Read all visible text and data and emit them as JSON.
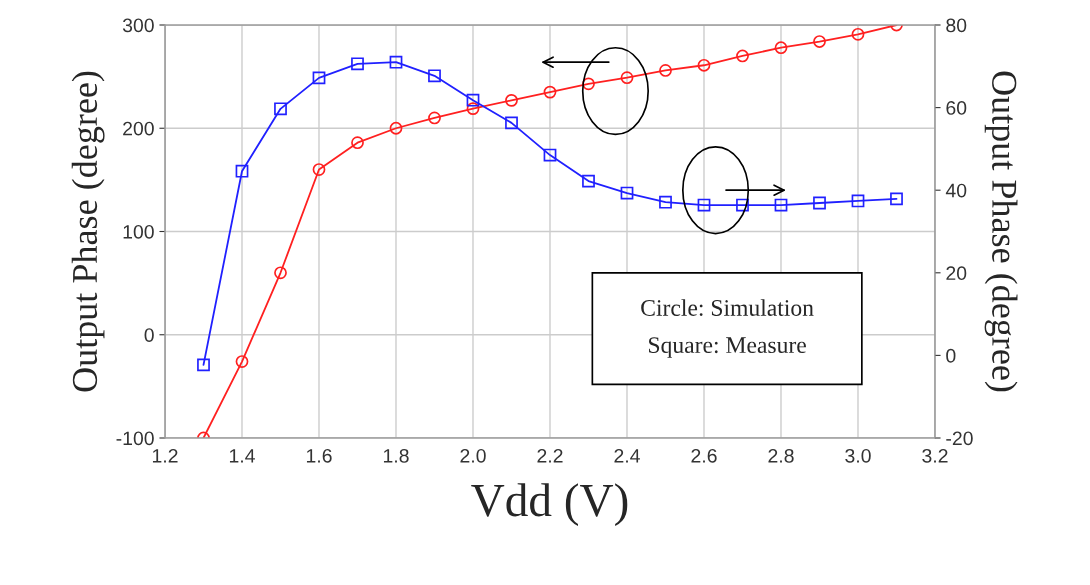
{
  "chart_data": {
    "type": "line",
    "xlabel": "Vdd (V)",
    "ylabel": "Output Phase (degree)",
    "y2label": "Output Phase (degree)",
    "x": [
      1.3,
      1.4,
      1.5,
      1.6,
      1.7,
      1.8,
      1.9,
      2.0,
      2.1,
      2.2,
      2.3,
      2.4,
      2.5,
      2.6,
      2.7,
      2.8,
      2.9,
      3.0,
      3.1
    ],
    "series": [
      {
        "color": "#ff2020",
        "marker": "circle",
        "values": [
          -100,
          -26,
          60,
          160,
          186,
          200,
          210,
          219,
          227,
          235,
          243,
          249,
          256,
          261,
          270,
          278,
          284,
          291,
          300
        ]
      },
      {
        "color": "#2020ff",
        "marker": "square",
        "axis": "y2",
        "values": [
          -2.3,
          44.6,
          59.7,
          67.2,
          70.6,
          71,
          67.7,
          61.8,
          56.3,
          48.5,
          42.2,
          39.3,
          37.1,
          36.4,
          36.4,
          36.4,
          36.9,
          37.4,
          37.9
        ]
      }
    ],
    "xlim": [
      1.2,
      3.2
    ],
    "xticks": [
      {
        "value": 1.2,
        "label": "1.2"
      },
      {
        "value": 1.4,
        "label": "1.4"
      },
      {
        "value": 1.6,
        "label": "1.6"
      },
      {
        "value": 1.8,
        "label": "1.8"
      },
      {
        "value": 2.0,
        "label": "2.0"
      },
      {
        "value": 2.2,
        "label": "2.2"
      },
      {
        "value": 2.4,
        "label": "2.4"
      },
      {
        "value": 2.6,
        "label": "2.6"
      },
      {
        "value": 2.8,
        "label": "2.8"
      },
      {
        "value": 3.0,
        "label": "3.0"
      },
      {
        "value": 3.2,
        "label": "3.2"
      }
    ],
    "ylim": [
      -100,
      300
    ],
    "yticks": [
      -100,
      0,
      100,
      200,
      300
    ],
    "y2lim": [
      -20,
      80
    ],
    "y2ticks": [
      -20,
      0,
      20,
      40,
      60,
      80
    ],
    "grid": true,
    "legend": false,
    "line_style": "solid",
    "annotations": [
      "Circle: Simulation",
      "Square: Measure"
    ]
  }
}
